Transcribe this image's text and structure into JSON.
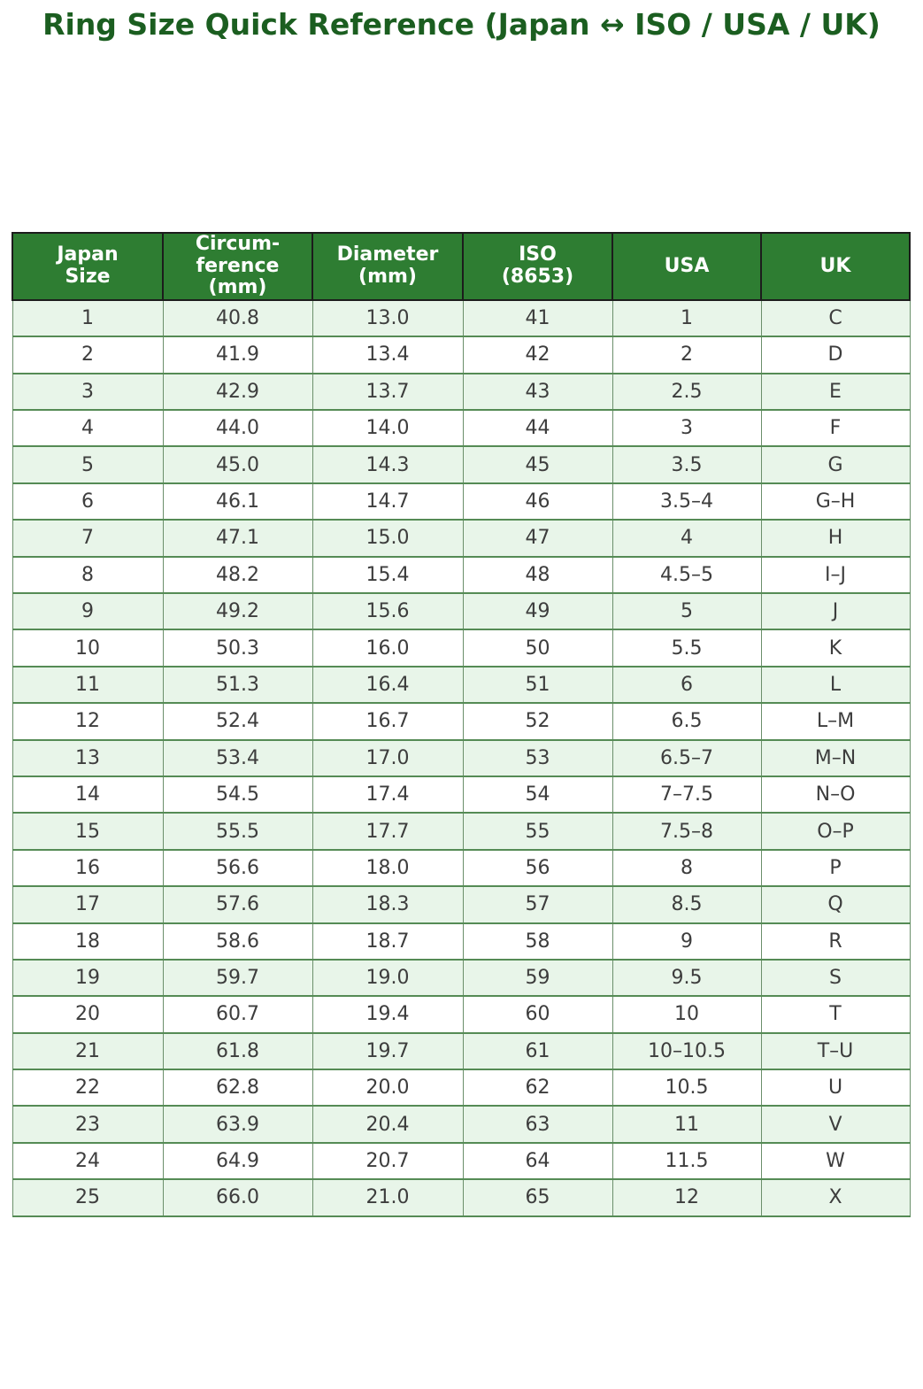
{
  "title": "Ring Size Quick Reference (Japan ↔ ISO / USA / UK)",
  "colors": {
    "title_text": "#1b5e20",
    "header_bg": "#2e7d32",
    "header_text": "#ffffff",
    "header_border": "#1c1c1c",
    "row_alt_bg": "#e8f5e9",
    "row_bg": "#ffffff",
    "row_border": "#558b55",
    "column_border": "#6b8f6b",
    "cell_text": "#3d3d3d"
  },
  "chart_data": {
    "type": "table",
    "title": "Ring Size Quick Reference (Japan ↔ ISO / USA / UK)",
    "columns": [
      "Japan Size",
      "Circum-ference (mm)",
      "Diameter (mm)",
      "ISO (8653)",
      "USA",
      "UK"
    ],
    "columns_display": [
      "Japan\nSize",
      "Circum-\nference\n(mm)",
      "Diameter\n(mm)",
      "ISO\n(8653)",
      "USA",
      "UK"
    ],
    "rows": [
      [
        "1",
        "40.8",
        "13.0",
        "41",
        "1",
        "C"
      ],
      [
        "2",
        "41.9",
        "13.4",
        "42",
        "2",
        "D"
      ],
      [
        "3",
        "42.9",
        "13.7",
        "43",
        "2.5",
        "E"
      ],
      [
        "4",
        "44.0",
        "14.0",
        "44",
        "3",
        "F"
      ],
      [
        "5",
        "45.0",
        "14.3",
        "45",
        "3.5",
        "G"
      ],
      [
        "6",
        "46.1",
        "14.7",
        "46",
        "3.5–4",
        "G–H"
      ],
      [
        "7",
        "47.1",
        "15.0",
        "47",
        "4",
        "H"
      ],
      [
        "8",
        "48.2",
        "15.4",
        "48",
        "4.5–5",
        "I–J"
      ],
      [
        "9",
        "49.2",
        "15.6",
        "49",
        "5",
        "J"
      ],
      [
        "10",
        "50.3",
        "16.0",
        "50",
        "5.5",
        "K"
      ],
      [
        "11",
        "51.3",
        "16.4",
        "51",
        "6",
        "L"
      ],
      [
        "12",
        "52.4",
        "16.7",
        "52",
        "6.5",
        "L–M"
      ],
      [
        "13",
        "53.4",
        "17.0",
        "53",
        "6.5–7",
        "M–N"
      ],
      [
        "14",
        "54.5",
        "17.4",
        "54",
        "7–7.5",
        "N–O"
      ],
      [
        "15",
        "55.5",
        "17.7",
        "55",
        "7.5–8",
        "O–P"
      ],
      [
        "16",
        "56.6",
        "18.0",
        "56",
        "8",
        "P"
      ],
      [
        "17",
        "57.6",
        "18.3",
        "57",
        "8.5",
        "Q"
      ],
      [
        "18",
        "58.6",
        "18.7",
        "58",
        "9",
        "R"
      ],
      [
        "19",
        "59.7",
        "19.0",
        "59",
        "9.5",
        "S"
      ],
      [
        "20",
        "60.7",
        "19.4",
        "60",
        "10",
        "T"
      ],
      [
        "21",
        "61.8",
        "19.7",
        "61",
        "10–10.5",
        "T–U"
      ],
      [
        "22",
        "62.8",
        "20.0",
        "62",
        "10.5",
        "U"
      ],
      [
        "23",
        "63.9",
        "20.4",
        "63",
        "11",
        "V"
      ],
      [
        "24",
        "64.9",
        "20.7",
        "64",
        "11.5",
        "W"
      ],
      [
        "25",
        "66.0",
        "21.0",
        "65",
        "12",
        "X"
      ]
    ]
  }
}
